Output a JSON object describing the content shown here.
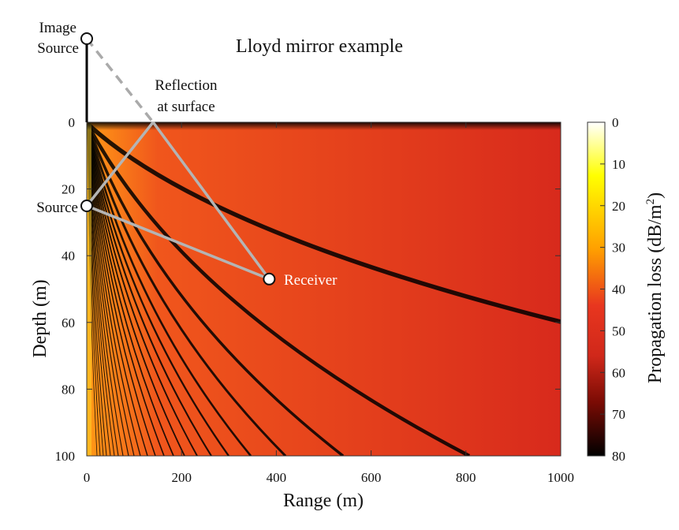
{
  "chart_data": {
    "type": "heatmap",
    "title": "Lloyd mirror example",
    "xlabel": "Range (m)",
    "ylabel": "Depth (m)",
    "colorbar_label_prefix": "Propagation loss (dB/m",
    "colorbar_label_sup": "2",
    "colorbar_label_suffix": ")",
    "xlim": [
      0,
      1000
    ],
    "ylim": [
      0,
      100
    ],
    "y_inverted": true,
    "clim": [
      0,
      80
    ],
    "x_ticks": [
      0,
      200,
      400,
      600,
      800,
      1000
    ],
    "y_ticks": [
      0,
      20,
      40,
      60,
      80,
      100
    ],
    "colorbar_ticks": [
      0,
      10,
      20,
      30,
      40,
      50,
      60,
      70,
      80
    ],
    "colormap": [
      "#ffffff",
      "#ffff00",
      "#ff9900",
      "#e8321e",
      "#aa1006",
      "#000000"
    ],
    "annotations": {
      "image_source": {
        "line1": "Image",
        "line2": "Source",
        "range": 0,
        "depth": -20
      },
      "source": {
        "label": "Source",
        "range": 0,
        "depth": 20
      },
      "receiver": {
        "label": "Receiver",
        "range": 385,
        "depth": 47
      },
      "reflection": {
        "line1": "Reflection",
        "line2": "at surface",
        "range": 140,
        "depth": 0
      }
    },
    "notes": "Interference pattern with nulls (black lines) radiating from source near the surface."
  }
}
